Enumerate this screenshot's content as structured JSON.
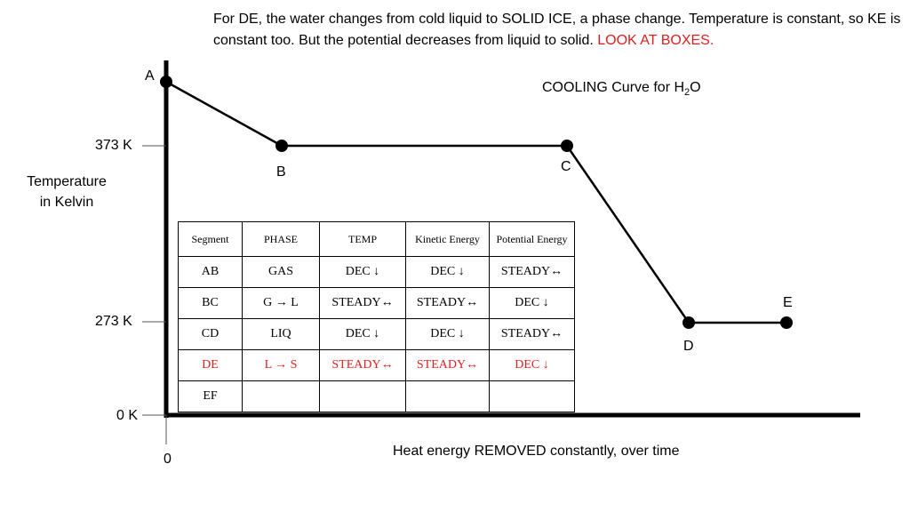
{
  "note": {
    "text": "For DE, the water changes from cold liquid to SOLID ICE, a phase change.  Temperature is constant, so KE is constant too.  But the potential decreases from liquid to solid.",
    "highlight": "LOOK AT BOXES.",
    "highlight_color": "#e02020"
  },
  "chart_title": {
    "main": "COOLING Curve for H",
    "sub": "2",
    "tail": "O"
  },
  "y_axis": {
    "label_line1": "Temperature",
    "label_line2": "in Kelvin",
    "ticks": [
      {
        "label": "373 K",
        "value": 373
      },
      {
        "label": "273 K",
        "value": 273
      },
      {
        "label": "0 K",
        "value": 0
      }
    ]
  },
  "x_axis": {
    "label": "Heat energy REMOVED constantly, over time",
    "origin_label": "0"
  },
  "points": [
    {
      "name": "A"
    },
    {
      "name": "B"
    },
    {
      "name": "C"
    },
    {
      "name": "D"
    },
    {
      "name": "E"
    }
  ],
  "table": {
    "headers": [
      "Segment",
      "PHASE",
      "TEMP",
      "Kinetic Energy",
      "Potential Energy"
    ],
    "rows": [
      {
        "cells": [
          "AB",
          "GAS",
          "DEC ↓",
          "DEC ↓",
          "STEADY↔"
        ],
        "highlight": false
      },
      {
        "cells": [
          "BC",
          "G → L",
          "STEADY↔",
          "STEADY↔",
          "DEC ↓"
        ],
        "highlight": false
      },
      {
        "cells": [
          "CD",
          "LIQ",
          "DEC ↓",
          "DEC ↓",
          "STEADY↔"
        ],
        "highlight": false
      },
      {
        "cells": [
          "DE",
          "L → S",
          "STEADY↔",
          "STEADY↔",
          "DEC ↓"
        ],
        "highlight": true
      },
      {
        "cells": [
          "EF",
          "",
          "",
          "",
          ""
        ],
        "highlight": false
      }
    ]
  }
}
